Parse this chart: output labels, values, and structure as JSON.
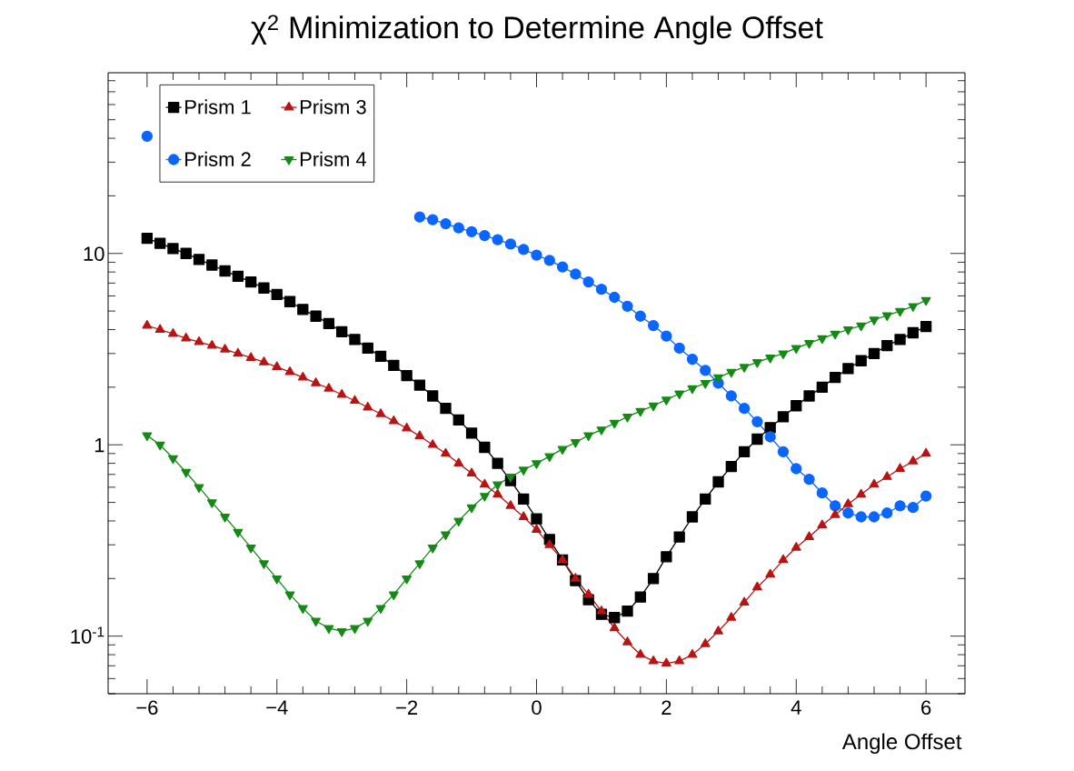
{
  "chart_data": {
    "type": "line",
    "title": "χ$^{2}$ Minimization to Determine Angle Offset",
    "xlabel": "Angle Offset",
    "x": [
      -6.0,
      -5.8,
      -5.6,
      -5.4,
      -5.2,
      -5.0,
      -4.8,
      -4.6,
      -4.4,
      -4.2,
      -4.0,
      -3.8,
      -3.6,
      -3.4,
      -3.2,
      -3.0,
      -2.8,
      -2.6,
      -2.4,
      -2.2,
      -2.0,
      -1.8,
      -1.6,
      -1.4,
      -1.2,
      -1.0,
      -0.8,
      -0.6,
      -0.4,
      -0.2,
      0.0,
      0.2,
      0.4,
      0.6,
      0.8,
      1.0,
      1.2,
      1.4,
      1.6,
      1.8,
      2.0,
      2.2,
      2.4,
      2.6,
      2.8,
      3.0,
      3.2,
      3.4,
      3.6,
      3.8,
      4.0,
      4.2,
      4.4,
      4.6,
      4.8,
      5.0,
      5.2,
      5.4,
      5.6,
      5.8,
      6.0
    ],
    "series": [
      {
        "name": "Prism 1",
        "color": "#000000",
        "marker": "square",
        "values": [
          12,
          11.3,
          10.6,
          10.0,
          9.3,
          8.7,
          8.1,
          7.6,
          7.1,
          6.6,
          6.1,
          5.6,
          5.1,
          4.7,
          4.3,
          3.9,
          3.55,
          3.2,
          2.9,
          2.6,
          2.3,
          2.05,
          1.8,
          1.55,
          1.35,
          1.15,
          0.97,
          0.8,
          0.65,
          0.52,
          0.41,
          0.32,
          0.25,
          0.195,
          0.155,
          0.13,
          0.125,
          0.135,
          0.16,
          0.2,
          0.26,
          0.33,
          0.42,
          0.52,
          0.64,
          0.77,
          0.92,
          1.07,
          1.23,
          1.4,
          1.6,
          1.8,
          2.0,
          2.25,
          2.5,
          2.75,
          3.0,
          3.3,
          3.55,
          3.85,
          4.15
        ]
      },
      {
        "name": "Prism 2",
        "color": "#0b66ff",
        "marker": "circle",
        "values": [
          41,
          null,
          null,
          null,
          null,
          null,
          null,
          null,
          null,
          null,
          null,
          null,
          null,
          null,
          null,
          null,
          null,
          null,
          null,
          null,
          null,
          15.5,
          15.0,
          14.3,
          13.6,
          13.0,
          12.4,
          11.8,
          11.2,
          10.5,
          9.8,
          9.2,
          8.5,
          7.8,
          7.1,
          6.5,
          5.9,
          5.3,
          4.7,
          4.2,
          3.7,
          3.2,
          2.8,
          2.45,
          2.1,
          1.8,
          1.55,
          1.32,
          1.1,
          0.92,
          0.75,
          0.66,
          0.56,
          0.48,
          0.44,
          0.42,
          0.42,
          0.44,
          0.48,
          0.47,
          0.54
        ]
      },
      {
        "name": "Prism 3",
        "color": "#b81414",
        "marker": "triangle",
        "values": [
          4.2,
          4.0,
          3.8,
          3.6,
          3.45,
          3.3,
          3.15,
          3.0,
          2.85,
          2.7,
          2.55,
          2.4,
          2.25,
          2.1,
          1.97,
          1.83,
          1.7,
          1.57,
          1.45,
          1.33,
          1.22,
          1.11,
          1.0,
          0.9,
          0.8,
          0.71,
          0.62,
          0.55,
          0.48,
          0.42,
          0.36,
          0.3,
          0.25,
          0.2,
          0.165,
          0.135,
          0.11,
          0.093,
          0.08,
          0.074,
          0.072,
          0.074,
          0.08,
          0.091,
          0.106,
          0.125,
          0.15,
          0.18,
          0.21,
          0.25,
          0.29,
          0.33,
          0.38,
          0.43,
          0.49,
          0.55,
          0.62,
          0.68,
          0.75,
          0.82,
          0.9
        ]
      },
      {
        "name": "Prism 4",
        "color": "#148a14",
        "marker": "triangle_down",
        "values": [
          1.12,
          1.0,
          0.85,
          0.72,
          0.6,
          0.5,
          0.42,
          0.35,
          0.29,
          0.24,
          0.2,
          0.165,
          0.14,
          0.12,
          0.11,
          0.106,
          0.11,
          0.12,
          0.14,
          0.165,
          0.2,
          0.24,
          0.29,
          0.34,
          0.4,
          0.47,
          0.54,
          0.62,
          0.68,
          0.74,
          0.8,
          0.87,
          0.95,
          1.03,
          1.12,
          1.2,
          1.3,
          1.4,
          1.5,
          1.6,
          1.72,
          1.85,
          1.97,
          2.1,
          2.25,
          2.4,
          2.55,
          2.7,
          2.85,
          3.0,
          3.2,
          3.4,
          3.6,
          3.8,
          4.0,
          4.2,
          4.5,
          4.75,
          5.0,
          5.3,
          5.7
        ]
      }
    ],
    "log": "y",
    "xlim": [
      -6.6,
      6.6
    ],
    "ylim": [
      0.05,
      88
    ],
    "xticks": [
      {
        "value": -6,
        "label": "−6"
      },
      {
        "value": -4,
        "label": "−4"
      },
      {
        "value": -2,
        "label": "−2"
      },
      0,
      2,
      4,
      6
    ],
    "yticks": [
      {
        "value": 0.1,
        "label": "10$^{-1}$"
      },
      1,
      10
    ],
    "legend": "top left",
    "line_style": "solid"
  }
}
